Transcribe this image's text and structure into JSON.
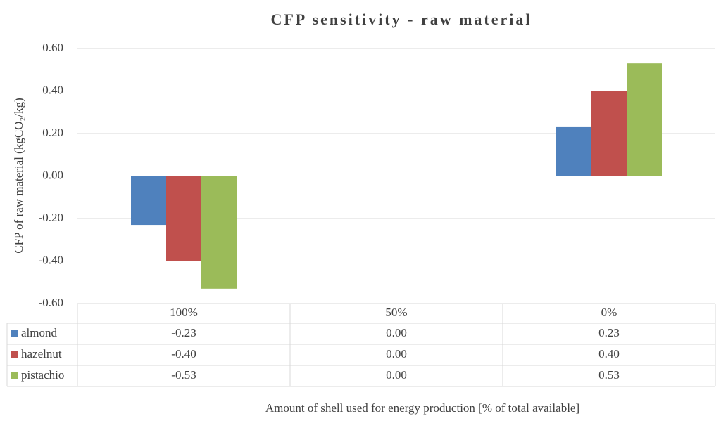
{
  "chart_data": {
    "type": "bar",
    "title": "CFP sensitivity - raw material",
    "y_label": "CFP of raw material  (kgCO₂/kg)",
    "x_label": "Amount of shell used for energy production [% of total available]",
    "categories": [
      "100%",
      "50%",
      "0%"
    ],
    "series": [
      {
        "name": "almond",
        "color": "#4f81bd",
        "values": [
          -0.23,
          0,
          0.23
        ],
        "value_labels": [
          "-0.23",
          "0.00",
          "0.23"
        ]
      },
      {
        "name": "hazelnut",
        "color": "#c0504d",
        "values": [
          -0.4,
          0,
          0.4
        ],
        "value_labels": [
          "-0.40",
          "0.00",
          "0.40"
        ]
      },
      {
        "name": "pistachio",
        "color": "#9bbb59",
        "values": [
          -0.53,
          0,
          0.53
        ],
        "value_labels": [
          "-0.53",
          "0.00",
          "0.53"
        ]
      }
    ],
    "ylim": [
      -0.6,
      0.6
    ],
    "yticks": [
      {
        "value": -0.6,
        "label": "-0.60"
      },
      {
        "value": -0.4,
        "label": "-0.40"
      },
      {
        "value": -0.2,
        "label": "-0.20"
      },
      {
        "value": 0,
        "label": "0.00"
      },
      {
        "value": 0.2,
        "label": "0.20"
      },
      {
        "value": 0.4,
        "label": "0.40"
      },
      {
        "value": 0.6,
        "label": "0.60"
      }
    ],
    "grid": true,
    "data_table": true
  }
}
